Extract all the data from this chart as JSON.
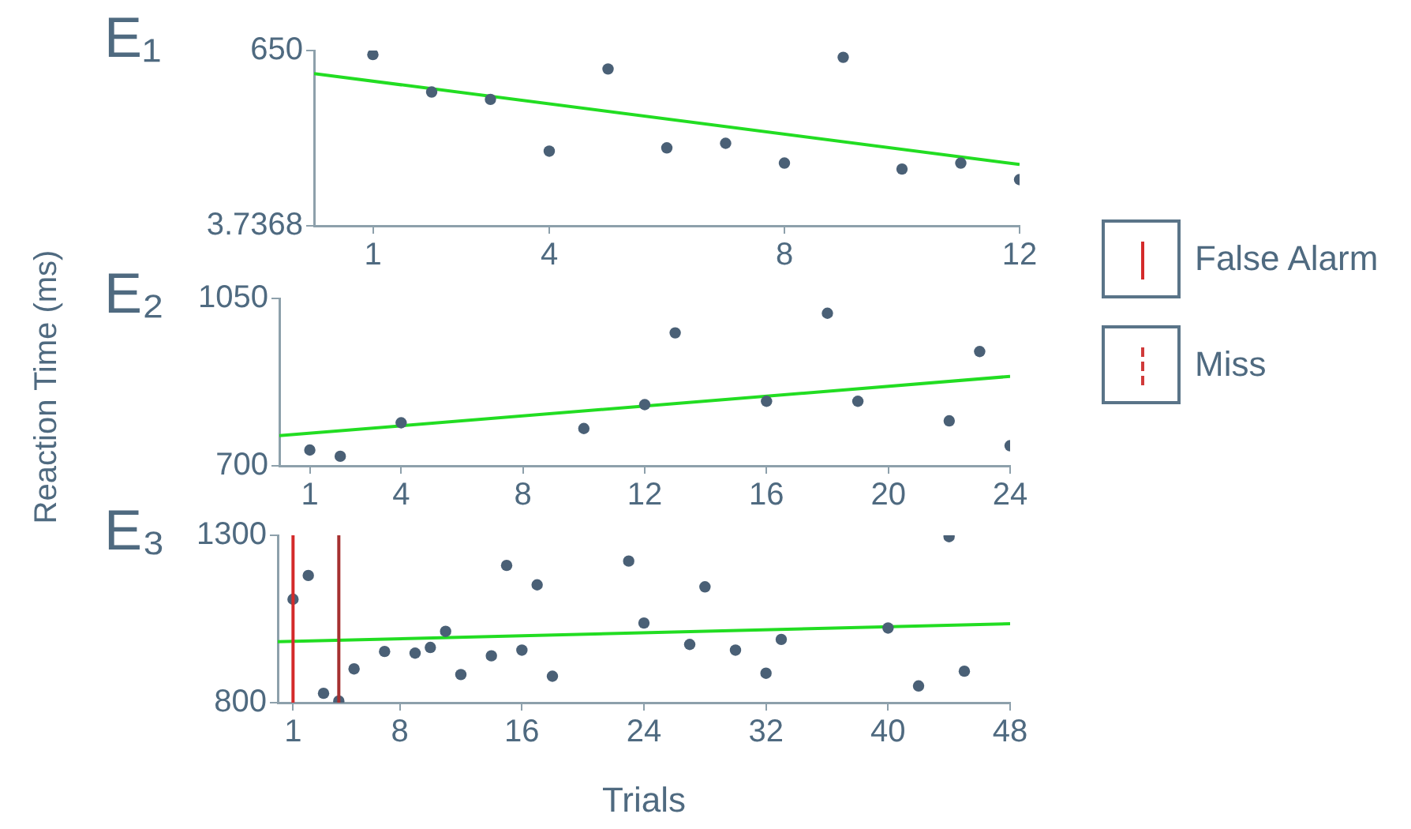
{
  "chart_data": [
    {
      "type": "scatter",
      "title": "E₁",
      "xlim": [
        0,
        12
      ],
      "xticks": [
        1,
        4,
        8,
        12
      ],
      "ylim": [
        3.7368,
        650
      ],
      "yticks": [
        3.7368,
        650
      ],
      "grid": false,
      "series": [
        {
          "type": "scatter",
          "marker": "circle",
          "color": "#4a6076",
          "x": [
            1,
            2,
            3,
            4,
            5,
            6,
            7,
            8,
            9,
            10,
            11,
            12
          ],
          "values": [
            635,
            497,
            470,
            279,
            582,
            291,
            308,
            235,
            625,
            213,
            235,
            174
          ]
        },
        {
          "type": "line",
          "marker": "none",
          "color": "#22dd22",
          "x": [
            0,
            12
          ],
          "values": [
            565,
            230
          ]
        }
      ]
    },
    {
      "type": "scatter",
      "title": "E₂",
      "ylabel": "Reaction Time (ms)",
      "xlim": [
        0,
        24
      ],
      "xticks": [
        1,
        4,
        8,
        12,
        16,
        20,
        24
      ],
      "ylim": [
        700,
        1050
      ],
      "yticks": [
        700,
        1050
      ],
      "grid": false,
      "series": [
        {
          "type": "scatter",
          "marker": "circle",
          "color": "#4a6076",
          "x": [
            1,
            2,
            4,
            10,
            12,
            13,
            16,
            18,
            19,
            22,
            23,
            24
          ],
          "values": [
            733,
            720,
            790,
            778,
            828,
            978,
            835,
            1019,
            835,
            794,
            939,
            742
          ]
        },
        {
          "type": "line",
          "marker": "none",
          "color": "#22dd22",
          "x": [
            0,
            24
          ],
          "values": [
            763,
            887
          ]
        }
      ]
    },
    {
      "type": "scatter",
      "title": "E₃",
      "xlabel": "Trials",
      "xlim": [
        0,
        48
      ],
      "xticks": [
        1,
        8,
        16,
        24,
        32,
        40,
        48
      ],
      "ylim": [
        800,
        1300
      ],
      "yticks": [
        800,
        1300
      ],
      "grid": false,
      "legend": "right",
      "series": [
        {
          "type": "scatter",
          "marker": "circle",
          "color": "#4a6076",
          "x": [
            1,
            2,
            3,
            4,
            5,
            7,
            9,
            10,
            11,
            12,
            14,
            15,
            16,
            17,
            18,
            23,
            24,
            27,
            28,
            30,
            32,
            33,
            40,
            42,
            44,
            45
          ],
          "values": [
            1109,
            1180,
            828,
            805,
            901,
            953,
            948,
            965,
            1013,
            884,
            940,
            1210,
            957,
            1152,
            879,
            1223,
            1038,
            974,
            1146,
            957,
            888,
            989,
            1023,
            850,
            1296,
            894
          ]
        },
        {
          "type": "line",
          "marker": "none",
          "color": "#22dd22",
          "x": [
            0,
            48
          ],
          "values": [
            982,
            1036
          ]
        },
        {
          "type": "line",
          "name": "Miss",
          "color": "#d03a3a",
          "line_style": "dashed"
        }
      ],
      "ref_lines": [
        {
          "axis": "x",
          "value": 1,
          "label": "False Alarm",
          "color": "#d42a2a",
          "line_style": "solid"
        },
        {
          "axis": "x",
          "value": 4,
          "color": "#a53030",
          "line_style": "solid"
        }
      ]
    }
  ]
}
